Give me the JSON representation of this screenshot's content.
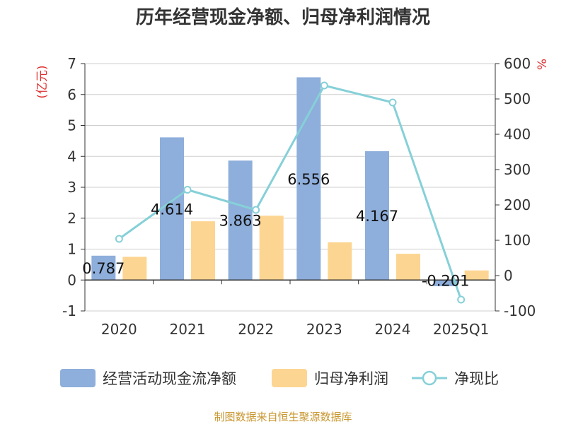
{
  "chart_data": {
    "type": "bar",
    "title": "历年经营现金净额、归母净利润情况",
    "categories": [
      "2020",
      "2021",
      "2022",
      "2023",
      "2024",
      "2025Q1"
    ],
    "left_axis": {
      "unit": "(亿元)",
      "range": [
        -1,
        7
      ],
      "ticks": [
        "-1",
        "0",
        "1",
        "2",
        "3",
        "4",
        "5",
        "6",
        "7"
      ]
    },
    "right_axis": {
      "unit": "%",
      "range": [
        -100,
        600
      ],
      "ticks": [
        "-100",
        "0",
        "100",
        "200",
        "300",
        "400",
        "500",
        "600"
      ]
    },
    "series": [
      {
        "name": "经营活动现金流净额",
        "type": "bar",
        "axis": "left",
        "color": "#8eaedb",
        "values": [
          0.787,
          4.614,
          3.863,
          6.556,
          4.167,
          -0.201
        ],
        "labels": [
          "0.787",
          "4.614",
          "3.863",
          "6.556",
          "4.167",
          "-0.201"
        ]
      },
      {
        "name": "归母净利润",
        "type": "bar",
        "axis": "left",
        "color": "#fdd592",
        "values": [
          0.75,
          1.9,
          2.08,
          1.22,
          0.85,
          0.31
        ]
      },
      {
        "name": "净现比",
        "type": "line",
        "axis": "right",
        "color": "#86d0d8",
        "values": [
          104,
          243,
          186,
          538,
          490,
          -68
        ]
      }
    ],
    "grid": true,
    "legend_position": "bottom"
  },
  "source_text": "制图数据来自恒生聚源数据库"
}
